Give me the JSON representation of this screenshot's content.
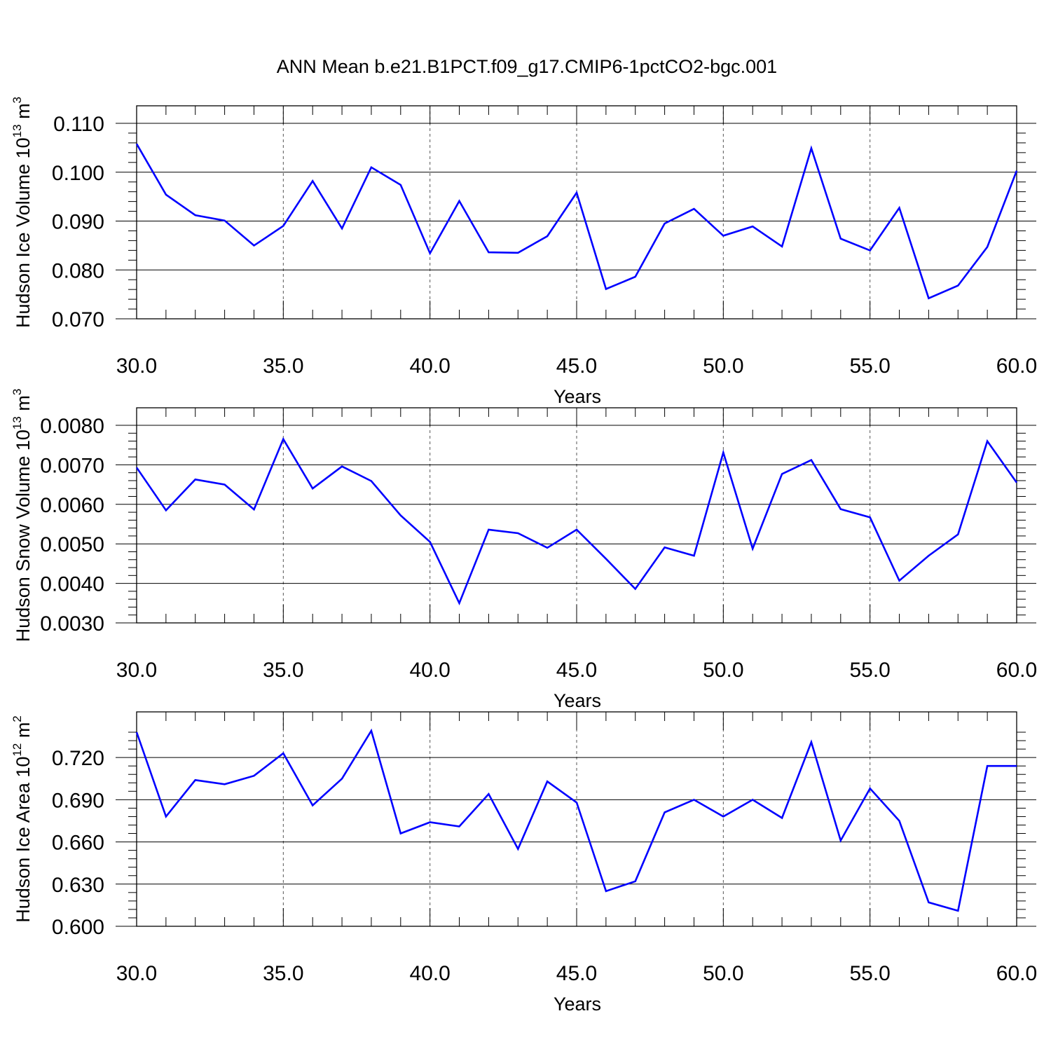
{
  "title": "ANN Mean b.e21.B1PCT.f09_g17.CMIP6-1pctCO2-bgc.001",
  "colors": {
    "line": "#0000ff",
    "axis": "#000000",
    "grid": "#555555",
    "background": "#ffffff"
  },
  "chart_data": [
    {
      "type": "line",
      "xlabel": "Years",
      "ylabel_main": "Hudson Ice Volume 10",
      "ylabel_exp": "13",
      "ylabel_unit": " m",
      "ylabel_unit_exp": "3",
      "xlim": [
        30,
        60
      ],
      "ylim": [
        0.07,
        0.11
      ],
      "xticks": [
        30,
        35,
        40,
        45,
        50,
        55,
        60
      ],
      "xtick_labels": [
        "30.0",
        "35.0",
        "40.0",
        "45.0",
        "50.0",
        "55.0",
        "60.0"
      ],
      "yticks": [
        0.07,
        0.08,
        0.09,
        0.1,
        0.11
      ],
      "ytick_labels": [
        "0.070",
        "0.080",
        "0.090",
        "0.100",
        "0.110"
      ],
      "grid": "vertical dashed at major x ticks",
      "x": [
        30,
        31,
        32,
        33,
        34,
        35,
        36,
        37,
        38,
        39,
        40,
        41,
        42,
        43,
        44,
        45,
        46,
        47,
        48,
        49,
        50,
        51,
        52,
        53,
        54,
        55,
        56,
        57,
        58,
        59,
        60
      ],
      "y": [
        0.1058,
        0.0954,
        0.0912,
        0.0901,
        0.085,
        0.089,
        0.0982,
        0.0885,
        0.101,
        0.0974,
        0.0834,
        0.0941,
        0.0836,
        0.0835,
        0.0869,
        0.0958,
        0.0761,
        0.0786,
        0.0895,
        0.0925,
        0.087,
        0.0889,
        0.0848,
        0.1049,
        0.0864,
        0.084,
        0.0927,
        0.0742,
        0.0768,
        0.0847,
        0.1003
      ]
    },
    {
      "type": "line",
      "xlabel": "Years",
      "ylabel_main": "Hudson Snow Volume 10",
      "ylabel_exp": "13",
      "ylabel_unit": " m",
      "ylabel_unit_exp": "3",
      "xlim": [
        30,
        60
      ],
      "ylim": [
        0.003,
        0.008
      ],
      "xticks": [
        30,
        35,
        40,
        45,
        50,
        55,
        60
      ],
      "xtick_labels": [
        "30.0",
        "35.0",
        "40.0",
        "45.0",
        "50.0",
        "55.0",
        "60.0"
      ],
      "yticks": [
        0.003,
        0.004,
        0.005,
        0.006,
        0.007,
        0.008
      ],
      "ytick_labels": [
        "0.0030",
        "0.0040",
        "0.0050",
        "0.0060",
        "0.0070",
        "0.0080"
      ],
      "grid": "vertical dashed at major x ticks",
      "x": [
        30,
        31,
        32,
        33,
        34,
        35,
        36,
        37,
        38,
        39,
        40,
        41,
        42,
        43,
        44,
        45,
        46,
        47,
        48,
        49,
        50,
        51,
        52,
        53,
        54,
        55,
        56,
        57,
        58,
        59,
        60
      ],
      "y": [
        0.00693,
        0.00585,
        0.00663,
        0.0065,
        0.00587,
        0.00765,
        0.0064,
        0.00696,
        0.00659,
        0.00572,
        0.00505,
        0.0035,
        0.00536,
        0.00527,
        0.0049,
        0.00536,
        0.00462,
        0.00386,
        0.00491,
        0.0047,
        0.00731,
        0.00488,
        0.00677,
        0.00712,
        0.00588,
        0.00567,
        0.00407,
        0.0047,
        0.00524,
        0.0076,
        0.00655
      ]
    },
    {
      "type": "line",
      "xlabel": "Years",
      "ylabel_main": "Hudson Ice Area 10",
      "ylabel_exp": "12",
      "ylabel_unit": " m",
      "ylabel_unit_exp": "2",
      "xlim": [
        30,
        60
      ],
      "ylim": [
        0.6,
        0.74
      ],
      "xticks": [
        30,
        35,
        40,
        45,
        50,
        55,
        60
      ],
      "xtick_labels": [
        "30.0",
        "35.0",
        "40.0",
        "45.0",
        "50.0",
        "55.0",
        "60.0"
      ],
      "yticks": [
        0.6,
        0.63,
        0.66,
        0.69,
        0.72
      ],
      "ytick_labels": [
        "0.600",
        "0.630",
        "0.660",
        "0.690",
        "0.720"
      ],
      "grid": "vertical dashed at major x ticks",
      "x": [
        30,
        31,
        32,
        33,
        34,
        35,
        36,
        37,
        38,
        39,
        40,
        41,
        42,
        43,
        44,
        45,
        46,
        47,
        48,
        49,
        50,
        51,
        52,
        53,
        54,
        55,
        56,
        57,
        58,
        59,
        60
      ],
      "y": [
        0.738,
        0.678,
        0.704,
        0.701,
        0.707,
        0.723,
        0.686,
        0.705,
        0.739,
        0.666,
        0.674,
        0.671,
        0.694,
        0.655,
        0.703,
        0.688,
        0.625,
        0.632,
        0.681,
        0.69,
        0.678,
        0.69,
        0.677,
        0.731,
        0.661,
        0.698,
        0.675,
        0.617,
        0.611,
        0.714,
        0.714
      ]
    }
  ]
}
